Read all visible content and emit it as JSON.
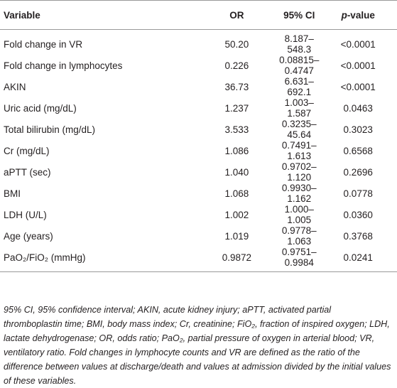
{
  "table": {
    "header": [
      "Variable",
      "OR",
      "95% CI",
      {
        "italic": "p",
        "rest": "-value"
      }
    ],
    "rows": [
      [
        "Fold change in VR",
        "50.20",
        "8.187–548.3",
        "<0.0001"
      ],
      [
        "Fold change in lymphocytes",
        "0.226",
        "0.08815–0.4747",
        "<0.0001"
      ],
      [
        "AKIN",
        "36.73",
        "6.631–692.1",
        "<0.0001"
      ],
      [
        "Uric acid (mg/dL)",
        "1.237",
        "1.003–1.587",
        "0.0463"
      ],
      [
        "Total bilirubin (mg/dL)",
        "3.533",
        "0.3235–45.64",
        "0.3023"
      ],
      [
        "Cr (mg/dL)",
        "1.086",
        "0.7491–1.613",
        "0.6568"
      ],
      [
        "aPTT (sec)",
        "1.040",
        "0.9702–1.120",
        "0.2696"
      ],
      [
        "BMI",
        "1.068",
        "0.9930–1.162",
        "0.0778"
      ],
      [
        "LDH (U/L)",
        "1.002",
        "1.000–1.005",
        "0.0360"
      ],
      [
        "Age (years)",
        "1.019",
        "0.9778–1.063",
        "0.3768"
      ],
      [
        "PaO₂/FiO₂ (mmHg)",
        "0.9872",
        "0.9751–0.9984",
        "0.0241"
      ]
    ]
  },
  "footnote": "95% CI, 95% confidence interval; AKIN, acute kidney injury; aPTT, activated partial thromboplastin time; BMI, body mass index; Cr, creatinine; FiO₂, fraction of inspired oxygen; LDH, lactate dehydrogenase; OR, odds ratio; PaO₂, partial pressure of oxygen in arterial blood; VR, ventilatory ratio. Fold changes in lymphocyte counts and VR are defined as the ratio of the difference between values at discharge/death and values at admission divided by the initial values of these variables."
}
